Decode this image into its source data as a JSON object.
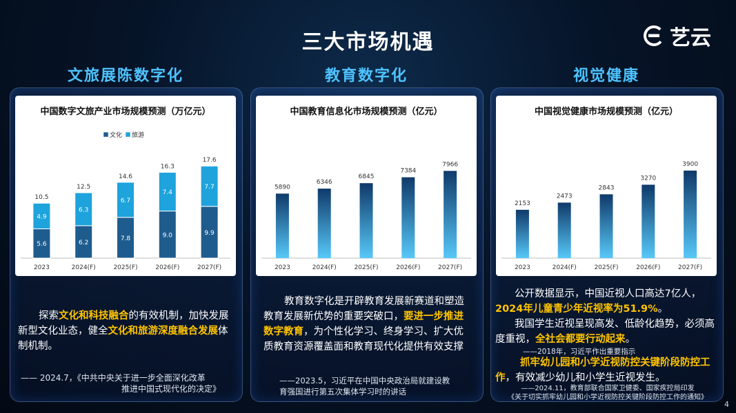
{
  "main_title": "三大市场机遇",
  "brand": {
    "name": "艺云",
    "logo": "brand-logo-icon"
  },
  "sections": [
    {
      "title": "文旅展陈数字化",
      "paragraph": {
        "lead": "探索",
        "hl1": "文化和科技融合",
        "mid": "的有效机制，加快发展新型文化业态，健全",
        "hl2": "文化和旅游深度融合发展",
        "tail": "体制机制。"
      },
      "citation": {
        "line1": "—— 2024.7，《中共中央关于进一步全面深化改革",
        "line2": "推进中国式现代化的决定》"
      }
    },
    {
      "title": "教育数字化",
      "paragraph": {
        "lead": "教育数字化是开辟教育发展新赛道和塑造教育发展新优势的重要突破口，",
        "hl1": "要进一步推进数字教育",
        "tail": "，为个性化学习、终身学习、扩大优质教育资源覆盖面和教育现代化提供有效支撑"
      },
      "citation": {
        "line1": "——2023.5，习近平在中国中央政治局就建设教",
        "line2": "育强国进行第五次集体学习时的讲话"
      }
    },
    {
      "title": "视觉健康",
      "paragraph": {
        "p1_lead": "公开数据显示，中国近视人口高达7亿人，",
        "p1_hl": "2024年儿童青少年近视率为51.9%",
        "p1_tail": "。",
        "p2_lead": "我国学生近视呈现高发、低龄化趋势，必须高度重视，",
        "p2_hl": "全社会都要行动起来",
        "p2_tail": "。",
        "cite1": "——2018年，习近平作出重要指示",
        "p3_hl": "抓牢幼儿园和小学近视防控关键阶段防控工作",
        "p3_tail": "，有效减少幼儿和小学生近视发生。"
      },
      "citation": {
        "line1": "——2024.11，教育部联合国家卫健委、国家疾控局印发",
        "line2": "《关于切实抓牢幼儿园和小学近视防控关键阶段防控工作的通知》"
      }
    }
  ],
  "page_number": "4",
  "colors": {
    "accent": "#4ec3ff",
    "highlight": "#ffc400",
    "bar_dark": "#1f5c8e",
    "bar_light": "#1ea3dc"
  },
  "chart_data": [
    {
      "type": "bar",
      "title": "中国数字文旅产业市场规模预测（万亿元）",
      "categories": [
        "2023",
        "2024(F)",
        "2025(F)",
        "2026(F)",
        "2027(F)"
      ],
      "series": [
        {
          "name": "文化",
          "values": [
            5.6,
            6.2,
            7.8,
            9.0,
            9.9
          ]
        },
        {
          "name": "旅游",
          "values": [
            4.9,
            6.3,
            6.7,
            7.4,
            7.7
          ]
        }
      ],
      "totals": [
        10.5,
        12.5,
        14.6,
        16.3,
        17.6
      ],
      "stacked": true,
      "legend": "top-center",
      "ylim": [
        0,
        20
      ]
    },
    {
      "type": "bar",
      "title": "中国教育信息化市场规模预测（亿元）",
      "categories": [
        "2023",
        "2024(F)",
        "2025(F)",
        "2026(F)",
        "2027(F)"
      ],
      "values": [
        5890,
        6346,
        6845,
        7384,
        7966
      ],
      "ylim": [
        0,
        8800
      ]
    },
    {
      "type": "bar",
      "title": "中国视觉健康市场规模预测（亿元）",
      "categories": [
        "2023",
        "2024(F)",
        "2025(F)",
        "2026(F)",
        "2027(F)"
      ],
      "values": [
        2153,
        2473,
        2843,
        3270,
        3900
      ],
      "ylim": [
        0,
        4600
      ]
    }
  ]
}
